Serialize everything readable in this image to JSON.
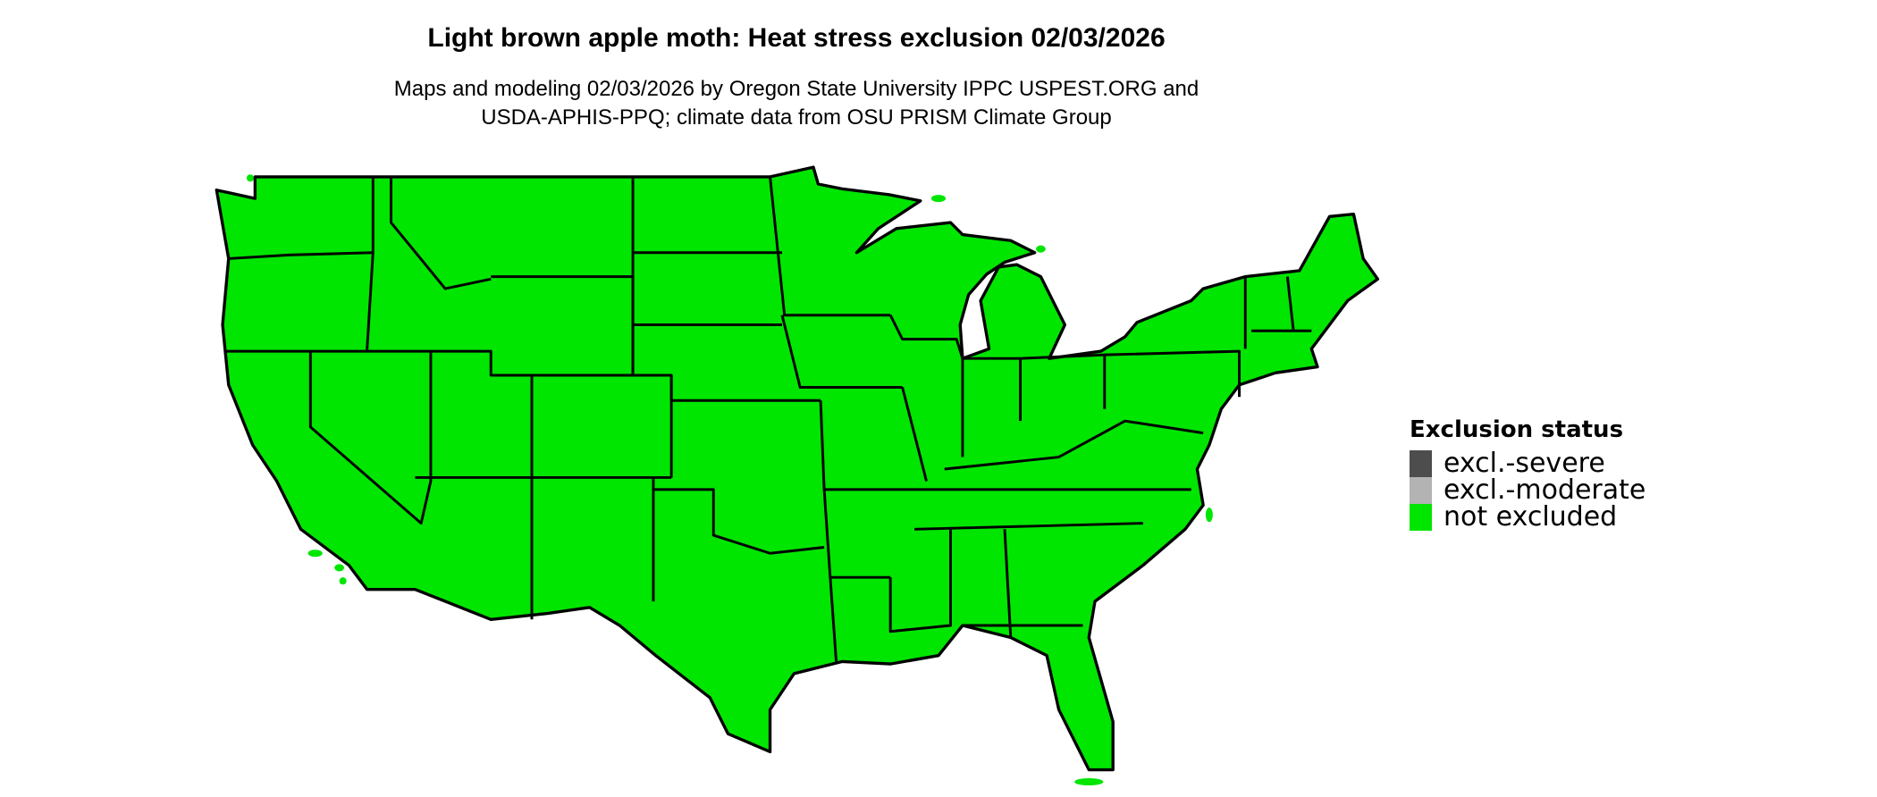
{
  "title": "Light brown apple moth: Heat stress exclusion 02/03/2026",
  "subtitle_lines": [
    "Maps and modeling 02/03/2026 by Oregon State University IPPC USPEST.ORG and",
    "USDA-APHIS-PPQ; climate data from OSU PRISM Climate Group"
  ],
  "map": {
    "region": "Contiguous United States",
    "fill_status": "not excluded",
    "fill_color": "#00e600",
    "border_color": "#000000"
  },
  "legend": {
    "title": "Exclusion status",
    "items": [
      {
        "label": "excl.-severe",
        "color": "#4d4d4d"
      },
      {
        "label": "excl.-moderate",
        "color": "#b3b3b3"
      },
      {
        "label": "not excluded",
        "color": "#00e600"
      }
    ]
  }
}
